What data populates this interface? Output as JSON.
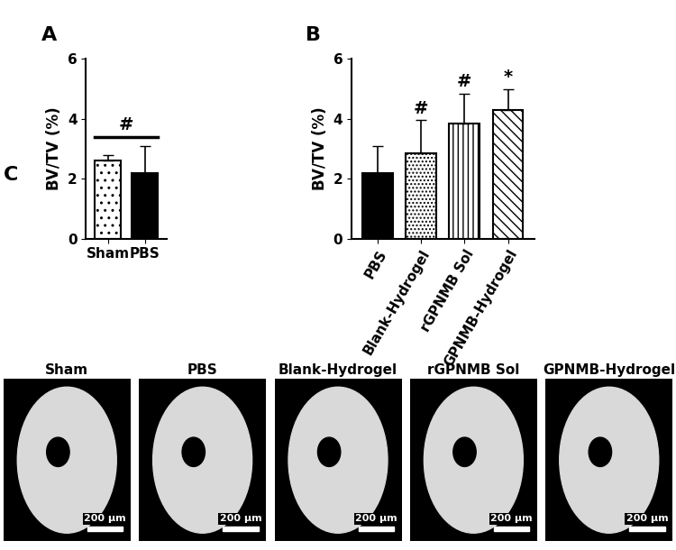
{
  "chart_data": [
    {
      "type": "bar",
      "title": "A",
      "ylabel": "BV/TV (%)",
      "categories": [
        "Sham",
        "PBS"
      ],
      "values": [
        2.6,
        2.2
      ],
      "errors": [
        0.2,
        0.9
      ],
      "colors": [
        "#ffffff",
        "#000000"
      ],
      "ylim": [
        0,
        6
      ],
      "yticks": [
        0,
        2,
        4,
        6
      ],
      "annotations": [
        {
          "text": "#",
          "categories": [
            "Sham",
            "PBS"
          ]
        }
      ]
    },
    {
      "type": "bar",
      "title": "B",
      "ylabel": "BV/TV (%)",
      "categories": [
        "PBS",
        "Blank-Hydrogel",
        "rGPNMB Sol",
        "GPNMB-Hydrogel"
      ],
      "values": [
        2.2,
        2.85,
        3.85,
        4.3
      ],
      "errors": [
        0.9,
        1.1,
        1.0,
        0.7
      ],
      "colors": [
        "#000000",
        "#ffffff",
        "#ffffff",
        "#ffffff"
      ],
      "ylim": [
        0,
        6
      ],
      "yticks": [
        0,
        2,
        4,
        6
      ],
      "annotations": [
        {
          "text": "#",
          "categories": [
            "Blank-Hydrogel"
          ]
        },
        {
          "text": "#",
          "categories": [
            "rGPNMB Sol"
          ]
        },
        {
          "text": "*",
          "categories": [
            "GPNMB-Hydrogel"
          ]
        }
      ]
    }
  ],
  "images": {
    "label": "C",
    "panels": [
      {
        "title": "Sham",
        "scale_bar": "200 μm"
      },
      {
        "title": "PBS",
        "scale_bar": "200 μm"
      },
      {
        "title": "Blank-Hydrogel",
        "scale_bar": "200 μm"
      },
      {
        "title": "rGPNMB Sol",
        "scale_bar": "200 μm"
      },
      {
        "title": "GPNMB-Hydrogel",
        "scale_bar": "200 μm"
      }
    ]
  }
}
